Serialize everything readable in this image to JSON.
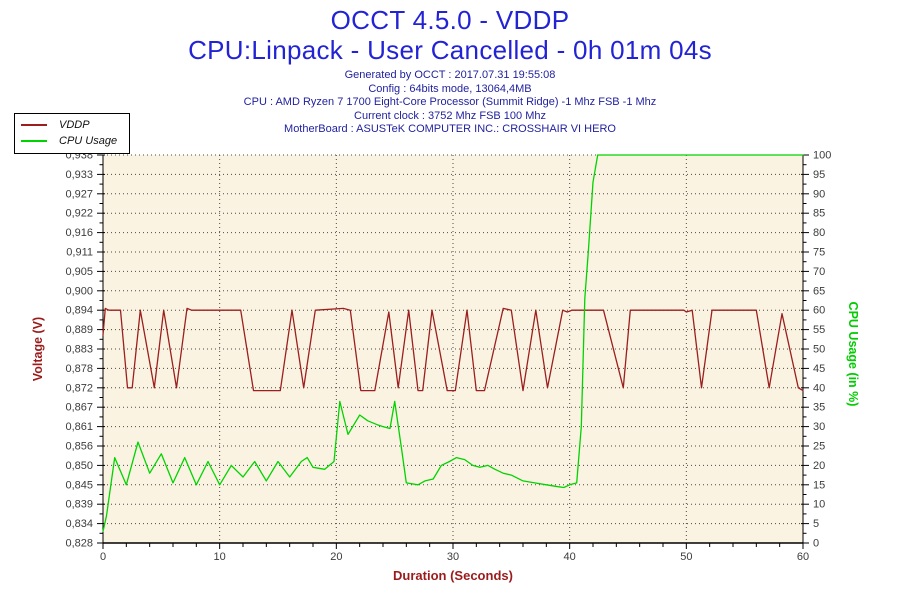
{
  "header": {
    "title_line1": "OCCT 4.5.0 - VDDP",
    "title_line2": "CPU:Linpack - User Cancelled - 0h 01m 04s",
    "info_lines": [
      "Generated by OCCT : 2017.07.31 19:55:08",
      "Config : 64bits mode, 13064,4MB",
      "CPU : AMD Ryzen 7 1700 Eight-Core Processor (Summit Ridge) -1 Mhz FSB -1 Mhz",
      "Current clock : 3752 Mhz FSB 100 Mhz",
      "MotherBoard : ASUSTeK COMPUTER INC.: CROSSHAIR VI HERO"
    ]
  },
  "legend": {
    "items": [
      {
        "label": "VDDP",
        "color": "#9b1f1f"
      },
      {
        "label": "CPU Usage",
        "color": "#00d400"
      }
    ]
  },
  "colors": {
    "title_blue": "#2323d6",
    "info_navy": "#1f1f9e",
    "voltage_axis": "#9b1b1b",
    "cpu_axis": "#00cc00",
    "plot_bg": "#fbf3e1",
    "grid": "#4a4a4a",
    "axis_line": "#000000",
    "tick_text": "#3c3c3c"
  },
  "chart_data": {
    "type": "line",
    "title": "OCCT 4.5.0 - VDDP",
    "xlabel": "Duration (Seconds)",
    "ylabel_left": "Voltage (V)",
    "ylabel_right": "CPU Usage (in %)",
    "x_range": [
      0,
      60
    ],
    "x_major_tick_labels": [
      "0",
      "10",
      "20",
      "30",
      "40",
      "50",
      "60"
    ],
    "x_major_tick_values": [
      0,
      10,
      20,
      30,
      40,
      50,
      60
    ],
    "x_minor_step": 2,
    "grid": "dotted, horizontal every 5% step, vertical every 10 s",
    "legend_position": "top-left",
    "left_axis": {
      "min": 0.828,
      "max": 0.938,
      "tick_labels_top_down": [
        "0,938",
        "0,933",
        "0,927",
        "0,922",
        "0,916",
        "0,911",
        "0,905",
        "0,900",
        "0,894",
        "0,889",
        "0,883",
        "0,878",
        "0,872",
        "0,867",
        "0,861",
        "0,856",
        "0,850",
        "0,845",
        "0,839",
        "0,834",
        "0,828"
      ]
    },
    "right_axis": {
      "min": 0,
      "max": 100,
      "tick_labels_top_down": [
        "100",
        "95",
        "90",
        "85",
        "80",
        "75",
        "70",
        "65",
        "60",
        "55",
        "50",
        "45",
        "40",
        "35",
        "30",
        "25",
        "20",
        "15",
        "10",
        "5",
        "0"
      ]
    },
    "series": [
      {
        "name": "VDDP",
        "id": "vddp",
        "axis": "left",
        "color": "#9b1f1f",
        "points": [
          [
            0,
            0.887
          ],
          [
            0.2,
            0.8945
          ],
          [
            0.5,
            0.894
          ],
          [
            1.5,
            0.894
          ],
          [
            2.1,
            0.872
          ],
          [
            2.5,
            0.872
          ],
          [
            3.2,
            0.894
          ],
          [
            4.4,
            0.872
          ],
          [
            5.2,
            0.894
          ],
          [
            6.3,
            0.872
          ],
          [
            7.2,
            0.8945
          ],
          [
            7.6,
            0.894
          ],
          [
            11.8,
            0.894
          ],
          [
            12.9,
            0.8712
          ],
          [
            15.2,
            0.8712
          ],
          [
            16.2,
            0.894
          ],
          [
            17.2,
            0.872
          ],
          [
            18.2,
            0.894
          ],
          [
            20.6,
            0.8945
          ],
          [
            21.2,
            0.894
          ],
          [
            22.1,
            0.8712
          ],
          [
            23.3,
            0.8712
          ],
          [
            24.5,
            0.8935
          ],
          [
            25.3,
            0.872
          ],
          [
            26.2,
            0.894
          ],
          [
            27.0,
            0.8712
          ],
          [
            27.4,
            0.8712
          ],
          [
            28.2,
            0.894
          ],
          [
            29.5,
            0.8712
          ],
          [
            30.2,
            0.8712
          ],
          [
            31.2,
            0.894
          ],
          [
            32.0,
            0.8712
          ],
          [
            32.7,
            0.8712
          ],
          [
            34.3,
            0.8945
          ],
          [
            35.0,
            0.894
          ],
          [
            36.0,
            0.8712
          ],
          [
            37.1,
            0.894
          ],
          [
            38.1,
            0.872
          ],
          [
            39.4,
            0.894
          ],
          [
            39.8,
            0.8935
          ],
          [
            40.2,
            0.894
          ],
          [
            42.9,
            0.894
          ],
          [
            44.6,
            0.872
          ],
          [
            45.2,
            0.894
          ],
          [
            49.8,
            0.894
          ],
          [
            50.0,
            0.8935
          ],
          [
            50.5,
            0.894
          ],
          [
            51.3,
            0.872
          ],
          [
            52.2,
            0.894
          ],
          [
            56.0,
            0.894
          ],
          [
            57.1,
            0.872
          ],
          [
            58.2,
            0.893
          ],
          [
            59.6,
            0.872
          ],
          [
            60,
            0.8712
          ]
        ]
      },
      {
        "name": "CPU Usage",
        "id": "cpu-usage",
        "axis": "right",
        "color": "#00d400",
        "points": [
          [
            0,
            3
          ],
          [
            0.3,
            7
          ],
          [
            1,
            22
          ],
          [
            2,
            15
          ],
          [
            3,
            26
          ],
          [
            4,
            18
          ],
          [
            5,
            23
          ],
          [
            6,
            15.5
          ],
          [
            7,
            22
          ],
          [
            8,
            15
          ],
          [
            9,
            21
          ],
          [
            10,
            15
          ],
          [
            11,
            20
          ],
          [
            12,
            17
          ],
          [
            13,
            21
          ],
          [
            14,
            16
          ],
          [
            15,
            21
          ],
          [
            16,
            17
          ],
          [
            17,
            21
          ],
          [
            17.5,
            22
          ],
          [
            18,
            19.5
          ],
          [
            19,
            19
          ],
          [
            19.8,
            21
          ],
          [
            20.3,
            36.5
          ],
          [
            21,
            28
          ],
          [
            22,
            33
          ],
          [
            22.7,
            31.5
          ],
          [
            23.5,
            30.5
          ],
          [
            24,
            30
          ],
          [
            24.6,
            29.5
          ],
          [
            25,
            36.5
          ],
          [
            25.6,
            24
          ],
          [
            26,
            15.5
          ],
          [
            27,
            15
          ],
          [
            27.6,
            16
          ],
          [
            28.3,
            16.5
          ],
          [
            29,
            20
          ],
          [
            29.7,
            21
          ],
          [
            30.3,
            22
          ],
          [
            31,
            21.5
          ],
          [
            31.7,
            20
          ],
          [
            32.3,
            19.5
          ],
          [
            33,
            20
          ],
          [
            33.6,
            19
          ],
          [
            34.3,
            18
          ],
          [
            35,
            17.5
          ],
          [
            36,
            16
          ],
          [
            37,
            15.5
          ],
          [
            38,
            15
          ],
          [
            39,
            14.5
          ],
          [
            39.5,
            14.3
          ],
          [
            40,
            15
          ],
          [
            40.6,
            15.5
          ],
          [
            41,
            30
          ],
          [
            41.3,
            63
          ],
          [
            41.6,
            75
          ],
          [
            42,
            93
          ],
          [
            42.4,
            100
          ],
          [
            60,
            100
          ]
        ]
      }
    ]
  }
}
